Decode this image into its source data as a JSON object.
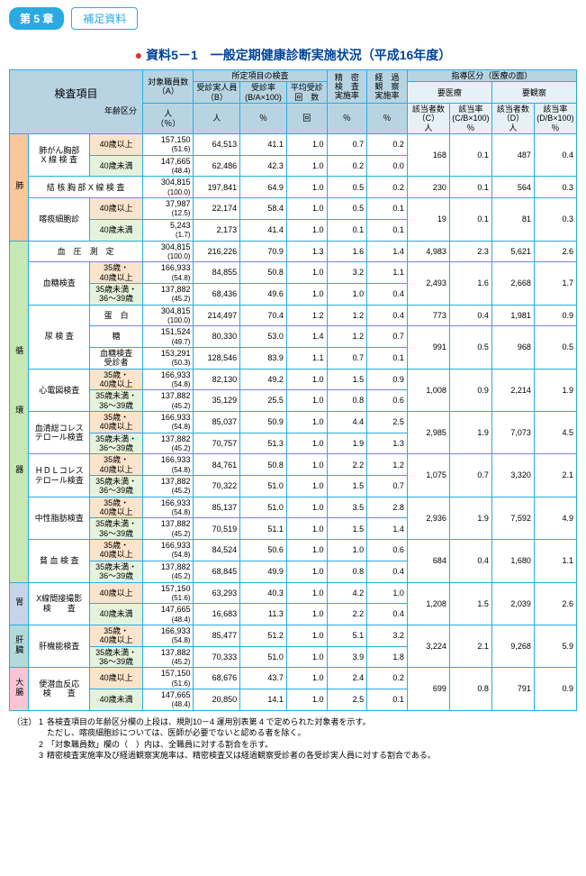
{
  "header": {
    "chapter": "第 5 章",
    "sub": "補足資料"
  },
  "title": "資料5－1　一般定期健康診断実施状況（平成16年度）",
  "columns": {
    "kensa": "検査項目",
    "age": "年齢区分",
    "taisho": "対象職員数\n（A）",
    "taisho_unit": "人\n（％）",
    "shotei": "所定項目の検査",
    "juji": "受診実人員\n（B）",
    "juji_unit": "人",
    "jushiritsu": "受診率\n(B/A×100)",
    "jushiritsu_unit": "％",
    "heikin": "平均受診\n回　数",
    "heikin_unit": "回",
    "seimitsu": "精　密\n検　査\n実施率",
    "seimitsu_unit": "％",
    "keika": "経　過\n観　察\n実施率",
    "keika_unit": "％",
    "shido": "指導区分（医療の面）",
    "youiryo": "要医療",
    "youkansatsu": "要観察",
    "gaitoC": "該当者数\n（C）",
    "gaitoC_unit": "人",
    "gaitoCB": "該当率\n(C/B×100)",
    "gaitoCB_unit": "％",
    "gaitoD": "該当者数\n（D）",
    "gaitoD_unit": "人",
    "gaitoDB": "該当率\n(D/B×100)",
    "gaitoDB_unit": "％"
  },
  "categories": {
    "lung": "肺",
    "circ": "循　　　　　環　　　　　器",
    "stom": "胃",
    "liver": "肝臓",
    "colon": "大腸"
  },
  "rows": [
    {
      "n": "肺がん胸部\nX 線 検 査",
      "a": "40歳以上",
      "A": "157,150",
      "Ap": "(51.6)",
      "B": "64,513",
      "r": "41.1",
      "h": "1.0",
      "s": "0.7",
      "k": "0.2",
      "C": "168",
      "Cr": "0.1",
      "D": "487",
      "Dr": "0.4",
      "sp": 2
    },
    {
      "a": "40歳未満",
      "A": "147,665",
      "Ap": "(48.4)",
      "B": "62,486",
      "r": "42.3",
      "h": "1.0",
      "s": "0.2",
      "k": "0.0"
    },
    {
      "n": "結 核 胸 部 X 線 検 査",
      "A": "304,815",
      "Ap": "(100.0)",
      "B": "197,841",
      "r": "64.9",
      "h": "1.0",
      "s": "0.5",
      "k": "0.2",
      "C": "230",
      "Cr": "0.1",
      "D": "564",
      "Dr": "0.3",
      "sp": 1,
      "full": 1
    },
    {
      "n": "喀痰細胞診",
      "a": "40歳以上",
      "A": "37,987",
      "Ap": "(12.5)",
      "B": "22,174",
      "r": "58.4",
      "h": "1.0",
      "s": "0.5",
      "k": "0.1",
      "C": "19",
      "Cr": "0.1",
      "D": "81",
      "Dr": "0.3",
      "sp": 2
    },
    {
      "a": "40歳未満",
      "A": "5,243",
      "Ap": "(1.7)",
      "B": "2,173",
      "r": "41.4",
      "h": "1.0",
      "s": "0.1",
      "k": "0.1"
    },
    {
      "n": "血　圧　測　定",
      "A": "304,815",
      "Ap": "(100.0)",
      "B": "216,226",
      "r": "70.9",
      "h": "1.3",
      "s": "1.6",
      "k": "1.4",
      "C": "4,983",
      "Cr": "2.3",
      "D": "5,621",
      "Dr": "2.6",
      "sp": 1,
      "full": 1
    },
    {
      "n": "血糖検査",
      "a": "35歳・\n40歳以上",
      "A": "166,933",
      "Ap": "(54.8)",
      "B": "84,855",
      "r": "50.8",
      "h": "1.0",
      "s": "3.2",
      "k": "1.1",
      "C": "2,493",
      "Cr": "1.6",
      "D": "2,668",
      "Dr": "1.7",
      "sp": 2
    },
    {
      "a": "35歳未満・\n36～39歳",
      "A": "137,882",
      "Ap": "(45.2)",
      "B": "68,436",
      "r": "49.6",
      "h": "1.0",
      "s": "1.0",
      "k": "0.4"
    },
    {
      "n": "尿 検 査",
      "a2": "蛋　白",
      "A": "304,815",
      "Ap": "(100.0)",
      "B": "214,497",
      "r": "70.4",
      "h": "1.2",
      "s": "1.2",
      "k": "0.4",
      "C": "773",
      "Cr": "0.4",
      "D": "1,981",
      "Dr": "0.9",
      "sp3": 3,
      "sp": 1
    },
    {
      "a2": "糖",
      "A": "151,524",
      "Ap": "(49.7)",
      "B": "80,330",
      "r": "53.0",
      "h": "1.4",
      "s": "1.2",
      "k": "0.7",
      "C": "991",
      "Cr": "0.5",
      "D": "968",
      "Dr": "0.5",
      "sp": 2
    },
    {
      "a2": "血糖検査\n受診者",
      "A": "153,291",
      "Ap": "(50.3)",
      "B": "128,546",
      "r": "83.9",
      "h": "1.1",
      "s": "0.7",
      "k": "0.1"
    },
    {
      "n": "心電図検査",
      "a": "35歳・\n40歳以上",
      "A": "166,933",
      "Ap": "(54.8)",
      "B": "82,130",
      "r": "49.2",
      "h": "1.0",
      "s": "1.5",
      "k": "0.9",
      "C": "1,008",
      "Cr": "0.9",
      "D": "2,214",
      "Dr": "1.9",
      "sp": 2
    },
    {
      "a": "35歳未満・\n36～39歳",
      "A": "137,882",
      "Ap": "(45.2)",
      "B": "35,129",
      "r": "25.5",
      "h": "1.0",
      "s": "0.8",
      "k": "0.6"
    },
    {
      "n": "血清総コレス\nテロール検査",
      "a": "35歳・\n40歳以上",
      "A": "166,933",
      "Ap": "(54.8)",
      "B": "85,037",
      "r": "50.9",
      "h": "1.0",
      "s": "4.4",
      "k": "2.5",
      "C": "2,985",
      "Cr": "1.9",
      "D": "7,073",
      "Dr": "4.5",
      "sp": 2
    },
    {
      "a": "35歳未満・\n36～39歳",
      "A": "137,882",
      "Ap": "(45.2)",
      "B": "70,757",
      "r": "51.3",
      "h": "1.0",
      "s": "1.9",
      "k": "1.3"
    },
    {
      "n": "ＨＤＬコレス\nテロール検査",
      "a": "35歳・\n40歳以上",
      "A": "166,933",
      "Ap": "(54.8)",
      "B": "84,761",
      "r": "50.8",
      "h": "1.0",
      "s": "2.2",
      "k": "1.2",
      "C": "1,075",
      "Cr": "0.7",
      "D": "3,320",
      "Dr": "2.1",
      "sp": 2
    },
    {
      "a": "35歳未満・\n36～39歳",
      "A": "137,882",
      "Ap": "(45.2)",
      "B": "70,322",
      "r": "51.0",
      "h": "1.0",
      "s": "1.5",
      "k": "0.7"
    },
    {
      "n": "中性脂肪検査",
      "a": "35歳・\n40歳以上",
      "A": "166,933",
      "Ap": "(54.8)",
      "B": "85,137",
      "r": "51.0",
      "h": "1.0",
      "s": "3.5",
      "k": "2.8",
      "C": "2,936",
      "Cr": "1.9",
      "D": "7,592",
      "Dr": "4.9",
      "sp": 2
    },
    {
      "a": "35歳未満・\n36～39歳",
      "A": "137,882",
      "Ap": "(45.2)",
      "B": "70,519",
      "r": "51.1",
      "h": "1.0",
      "s": "1.5",
      "k": "1.4"
    },
    {
      "n": "貧 血 検 査",
      "a": "35歳・\n40歳以上",
      "A": "166,933",
      "Ap": "(54.8)",
      "B": "84,524",
      "r": "50.6",
      "h": "1.0",
      "s": "1.0",
      "k": "0.6",
      "C": "684",
      "Cr": "0.4",
      "D": "1,680",
      "Dr": "1.1",
      "sp": 2
    },
    {
      "a": "35歳未満・\n36～39歳",
      "A": "137,882",
      "Ap": "(45.2)",
      "B": "68,845",
      "r": "49.9",
      "h": "1.0",
      "s": "0.8",
      "k": "0.4"
    },
    {
      "n": "X線間接撮影\n検　　査",
      "a": "40歳以上",
      "A": "157,150",
      "Ap": "(51.6)",
      "B": "63,293",
      "r": "40.3",
      "h": "1.0",
      "s": "4.2",
      "k": "1.0",
      "C": "1,208",
      "Cr": "1.5",
      "D": "2,039",
      "Dr": "2.6",
      "sp": 2
    },
    {
      "a": "40歳未満",
      "A": "147,665",
      "Ap": "(48.4)",
      "B": "16,683",
      "r": "11.3",
      "h": "1.0",
      "s": "2.2",
      "k": "0.4"
    },
    {
      "n": "肝機能検査",
      "a": "35歳・\n40歳以上",
      "A": "166,933",
      "Ap": "(54.8)",
      "B": "85,477",
      "r": "51.2",
      "h": "1.0",
      "s": "5.1",
      "k": "3.2",
      "C": "3,224",
      "Cr": "2.1",
      "D": "9,268",
      "Dr": "5.9",
      "sp": 2
    },
    {
      "a": "35歳未満・\n36～39歳",
      "A": "137,882",
      "Ap": "(45.2)",
      "B": "70,333",
      "r": "51.0",
      "h": "1.0",
      "s": "3.9",
      "k": "1.8"
    },
    {
      "n": "便潜血反応\n検　　査",
      "a": "40歳以上",
      "A": "157,150",
      "Ap": "(51.6)",
      "B": "68,676",
      "r": "43.7",
      "h": "1.0",
      "s": "2.4",
      "k": "0.2",
      "C": "699",
      "Cr": "0.8",
      "D": "791",
      "Dr": "0.9",
      "sp": 2
    },
    {
      "a": "40歳未満",
      "A": "147,665",
      "Ap": "(48.4)",
      "B": "20,850",
      "r": "14.1",
      "h": "1.0",
      "s": "2.5",
      "k": "0.1"
    }
  ],
  "notes": {
    "prefix": "（注）",
    "items": [
      {
        "n": "1",
        "t": "各検査項目の年齢区分欄の上段は、規則10－4 運用別表第 4 で定められた対象者を示す。\nただし、喀痰細胞診については、医師が必要でないと認める者を除く。"
      },
      {
        "n": "2",
        "t": "「対象職員数」欄の（　）内は、全職員に対する割合を示す。"
      },
      {
        "n": "3",
        "t": "精密検査実施率及び経過観察実施率は、精密検査又は経過観察受診者の各受診実人員に対する割合である。"
      }
    ]
  }
}
